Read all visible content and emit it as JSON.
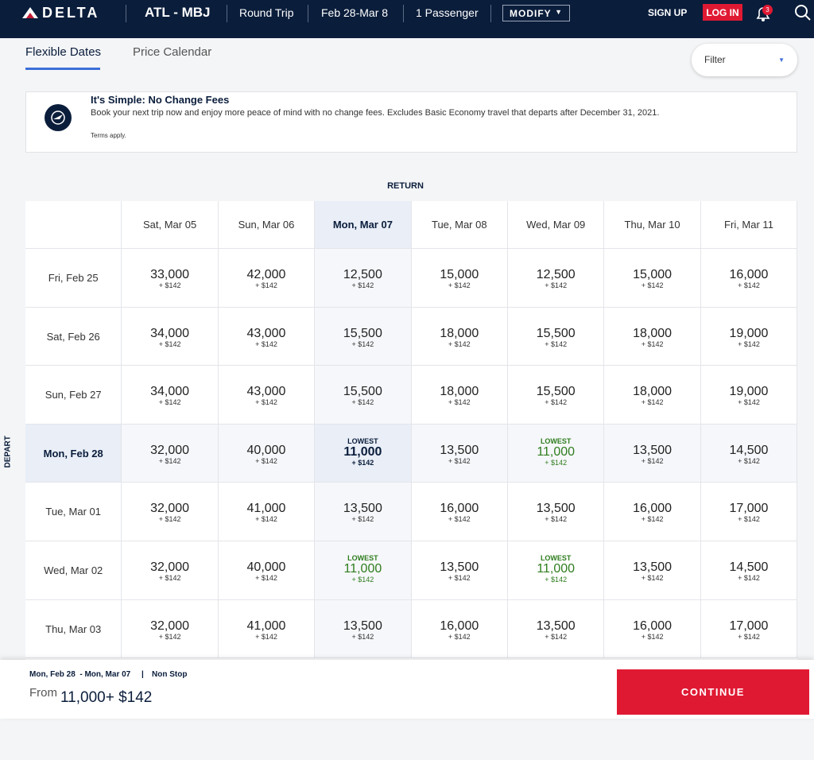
{
  "header": {
    "logo": "DELTA",
    "route": "ATL - MBJ",
    "trip_type": "Round Trip",
    "dates": "Feb 28-Mar 8",
    "passengers": "1 Passenger",
    "modify": "MODIFY",
    "sign_up": "SIGN UP",
    "log_in": "LOG IN",
    "notifications": "3"
  },
  "tabs": [
    "Flexible Dates",
    "Price Calendar"
  ],
  "filter": "Filter",
  "banner": {
    "title": "It's Simple: No Change Fees",
    "text": "Book your next trip now and enjoy more peace of mind with no change fees. Excludes Basic Economy travel that departs after December 31, 2021.",
    "terms": "Terms apply."
  },
  "grid": {
    "return_label": "RETURN",
    "depart_label": "DEPART",
    "return_dates": [
      "Sat, Mar 05",
      "Sun, Mar 06",
      "Mon, Mar 07",
      "Tue, Mar 08",
      "Wed, Mar 09",
      "Thu, Mar 10",
      "Fri, Mar 11"
    ],
    "rows": [
      {
        "depart": "Fri, Feb 25",
        "cells": [
          {
            "miles": "33,000",
            "fee": "+ $142"
          },
          {
            "miles": "42,000",
            "fee": "+ $142"
          },
          {
            "miles": "12,500",
            "fee": "+ $142"
          },
          {
            "miles": "15,000",
            "fee": "+ $142"
          },
          {
            "miles": "12,500",
            "fee": "+ $142"
          },
          {
            "miles": "15,000",
            "fee": "+ $142"
          },
          {
            "miles": "16,000",
            "fee": "+ $142"
          }
        ]
      },
      {
        "depart": "Sat, Feb 26",
        "cells": [
          {
            "miles": "34,000",
            "fee": "+ $142"
          },
          {
            "miles": "43,000",
            "fee": "+ $142"
          },
          {
            "miles": "15,500",
            "fee": "+ $142"
          },
          {
            "miles": "18,000",
            "fee": "+ $142"
          },
          {
            "miles": "15,500",
            "fee": "+ $142"
          },
          {
            "miles": "18,000",
            "fee": "+ $142"
          },
          {
            "miles": "19,000",
            "fee": "+ $142"
          }
        ]
      },
      {
        "depart": "Sun, Feb 27",
        "cells": [
          {
            "miles": "34,000",
            "fee": "+ $142"
          },
          {
            "miles": "43,000",
            "fee": "+ $142"
          },
          {
            "miles": "15,500",
            "fee": "+ $142"
          },
          {
            "miles": "18,000",
            "fee": "+ $142"
          },
          {
            "miles": "15,500",
            "fee": "+ $142"
          },
          {
            "miles": "18,000",
            "fee": "+ $142"
          },
          {
            "miles": "19,000",
            "fee": "+ $142"
          }
        ]
      },
      {
        "depart": "Mon, Feb 28",
        "cells": [
          {
            "miles": "32,000",
            "fee": "+ $142"
          },
          {
            "miles": "40,000",
            "fee": "+ $142"
          },
          {
            "tag": "LOWEST",
            "miles": "11,000",
            "fee": "+ $142"
          },
          {
            "miles": "13,500",
            "fee": "+ $142"
          },
          {
            "tag": "LOWEST",
            "miles": "11,000",
            "fee": "+ $142"
          },
          {
            "miles": "13,500",
            "fee": "+ $142"
          },
          {
            "miles": "14,500",
            "fee": "+ $142"
          }
        ]
      },
      {
        "depart": "Tue, Mar 01",
        "cells": [
          {
            "miles": "32,000",
            "fee": "+ $142"
          },
          {
            "miles": "41,000",
            "fee": "+ $142"
          },
          {
            "miles": "13,500",
            "fee": "+ $142"
          },
          {
            "miles": "16,000",
            "fee": "+ $142"
          },
          {
            "miles": "13,500",
            "fee": "+ $142"
          },
          {
            "miles": "16,000",
            "fee": "+ $142"
          },
          {
            "miles": "17,000",
            "fee": "+ $142"
          }
        ]
      },
      {
        "depart": "Wed, Mar 02",
        "cells": [
          {
            "miles": "32,000",
            "fee": "+ $142"
          },
          {
            "miles": "40,000",
            "fee": "+ $142"
          },
          {
            "tag": "LOWEST",
            "miles": "11,000",
            "fee": "+ $142"
          },
          {
            "miles": "13,500",
            "fee": "+ $142"
          },
          {
            "tag": "LOWEST",
            "miles": "11,000",
            "fee": "+ $142"
          },
          {
            "miles": "13,500",
            "fee": "+ $142"
          },
          {
            "miles": "14,500",
            "fee": "+ $142"
          }
        ]
      },
      {
        "depart": "Thu, Mar 03",
        "cells": [
          {
            "miles": "32,000",
            "fee": "+ $142"
          },
          {
            "miles": "41,000",
            "fee": "+ $142"
          },
          {
            "miles": "13,500",
            "fee": "+ $142"
          },
          {
            "miles": "16,000",
            "fee": "+ $142"
          },
          {
            "miles": "13,500",
            "fee": "+ $142"
          },
          {
            "miles": "16,000",
            "fee": "+ $142"
          },
          {
            "miles": "17,000",
            "fee": "+ $142"
          }
        ]
      }
    ]
  },
  "footer": {
    "dates": "Mon, Feb 28  - Mon, Mar 07",
    "separator": "|",
    "stops": "Non Stop",
    "from": "From",
    "price": "11,000+ $142",
    "continue": "CONTINUE"
  }
}
